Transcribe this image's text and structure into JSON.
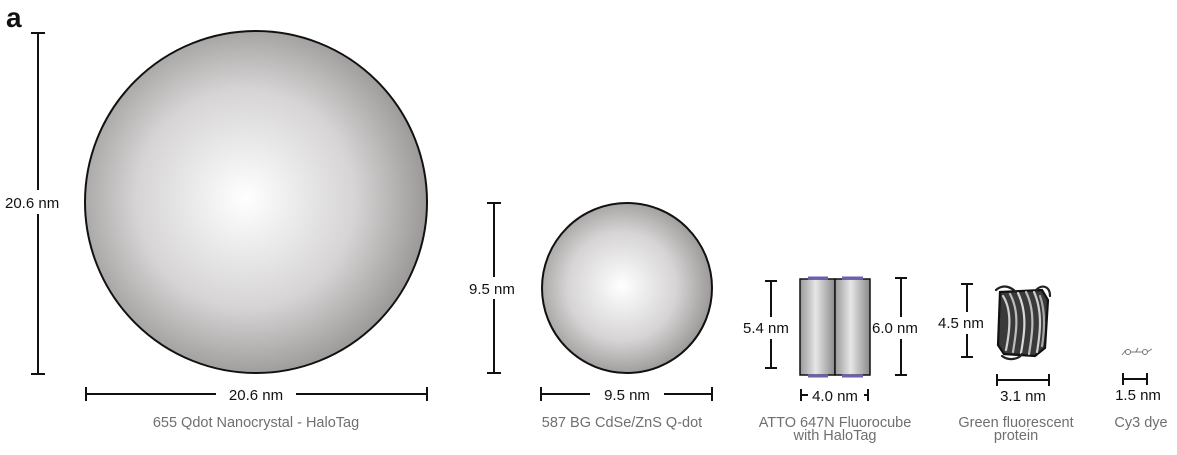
{
  "panel_label": "a",
  "items": {
    "qdot655": {
      "height_label": "20.6 nm",
      "width_label": "20.6 nm",
      "caption": "655 Qdot Nanocrystal - HaloTag"
    },
    "qdot587": {
      "height_label": "9.5 nm",
      "width_label": "9.5 nm",
      "caption": "587 BG CdSe/ZnS Q-dot"
    },
    "fluorocube": {
      "left_label": "5.4 nm",
      "right_label": "6.0 nm",
      "width_label": "4.0 nm",
      "caption_line1": "ATTO 647N Fluorocube",
      "caption_line2": "with HaloTag"
    },
    "gfp": {
      "height_label": "4.5 nm",
      "width_label": "3.1 nm",
      "caption_line1": "Green fluorescent",
      "caption_line2": "protein"
    },
    "cy3": {
      "width_label": "1.5 nm",
      "caption": "Cy3 dye"
    }
  },
  "colors": {
    "sphere_highlight": "#ffffff",
    "sphere_shadow": "#8e8a8a",
    "cube_edge": "#6d5fb0"
  }
}
